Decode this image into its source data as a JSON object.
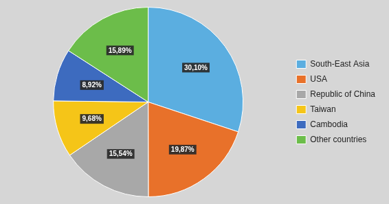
{
  "chart_data": {
    "type": "pie",
    "categories": [
      "South-East Asia",
      "USA",
      "Republic of China",
      "Taiwan",
      "Cambodia",
      "Other countries"
    ],
    "values": [
      30.1,
      19.87,
      15.54,
      9.68,
      8.92,
      15.89
    ],
    "value_labels": [
      "30,10%",
      "19,87%",
      "15,54%",
      "9,68%",
      "8,92%",
      "15,89%"
    ],
    "colors": [
      "#5baee0",
      "#e8712a",
      "#a8a8a8",
      "#f5c518",
      "#3d6bbf",
      "#6cbd4a"
    ],
    "data_labels": true,
    "legend": "right"
  }
}
